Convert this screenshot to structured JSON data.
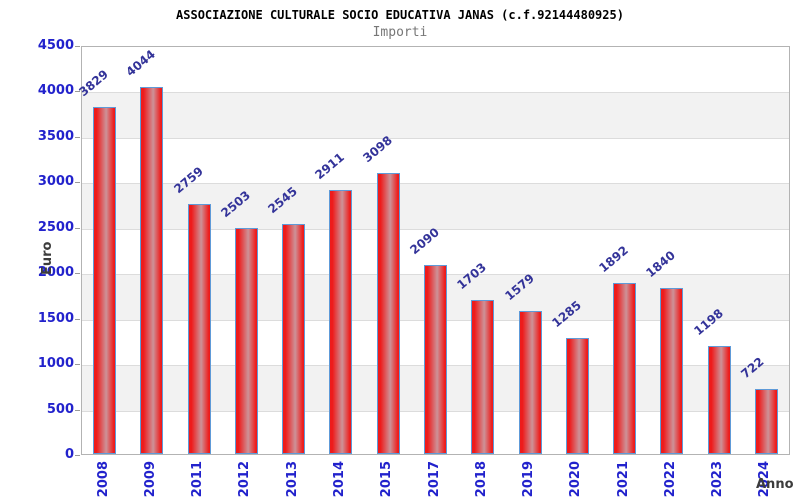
{
  "chart_data": {
    "type": "bar",
    "title": "ASSOCIAZIONE CULTURALE SOCIO EDUCATIVA JANAS (c.f.92144480925)",
    "subtitle": "Importi",
    "xlabel": "Anno",
    "ylabel": "Euro",
    "categories": [
      "2008",
      "2009",
      "2011",
      "2012",
      "2013",
      "2014",
      "2015",
      "2017",
      "2018",
      "2019",
      "2020",
      "2021",
      "2022",
      "2023",
      "2024"
    ],
    "values": [
      3829,
      4044,
      2759,
      2503,
      2545,
      2911,
      3098,
      2090,
      1703,
      1579,
      1285,
      1892,
      1840,
      1198,
      722
    ],
    "ylim": [
      0,
      4500
    ],
    "ytick_step": 500,
    "legend": "none",
    "grid": "horizontal-bands",
    "colors": {
      "bar_fill_edge": "#ee1b1b",
      "bar_fill_center": "#cd9298",
      "bar_border": "#5e9ad8",
      "tick_label": "#2222cc",
      "value_label": "#333399",
      "band_gray": "#f2f2f2",
      "gridline": "#dcdcdc",
      "plot_border": "#b3b3b3",
      "title": "#000000",
      "subtitle": "#777777",
      "axis_title": "#3c3c3c"
    }
  }
}
